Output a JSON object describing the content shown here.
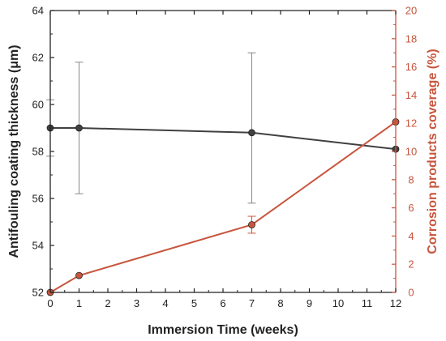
{
  "chart_data": {
    "type": "line",
    "title": "",
    "xlabel": "Immersion Time (weeks)",
    "ylabel_left": "Antifouling coating thickness (μm)",
    "ylabel_right": "Corrosion products coverage (%)",
    "xlim": [
      0,
      12
    ],
    "ylim_left": [
      52,
      64
    ],
    "ylim_right": [
      0,
      20
    ],
    "x_ticks": [
      "0",
      "1",
      "2",
      "3",
      "4",
      "5",
      "6",
      "7",
      "8",
      "9",
      "10",
      "11",
      "12"
    ],
    "y_left_ticks": [
      "52",
      "54",
      "56",
      "58",
      "60",
      "62",
      "64"
    ],
    "y_right_ticks": [
      "0",
      "2",
      "4",
      "6",
      "8",
      "10",
      "12",
      "14",
      "16",
      "18",
      "20"
    ],
    "grid": false,
    "legend": "none",
    "series": [
      {
        "axis": "left",
        "color": "#404040",
        "x": [
          0,
          1,
          7,
          12
        ],
        "y": [
          59.0,
          59.0,
          58.8,
          58.1
        ],
        "err_lo": [
          1.2,
          2.8,
          3.0,
          null
        ],
        "err_hi": [
          1.2,
          2.8,
          3.4,
          null
        ]
      },
      {
        "axis": "right",
        "color": "#c8553d",
        "x": [
          0,
          1,
          7,
          12
        ],
        "y": [
          0.0,
          1.2,
          4.8,
          12.1
        ],
        "err_lo": [
          null,
          null,
          0.6,
          null
        ],
        "err_hi": [
          null,
          null,
          0.6,
          null
        ]
      }
    ]
  }
}
